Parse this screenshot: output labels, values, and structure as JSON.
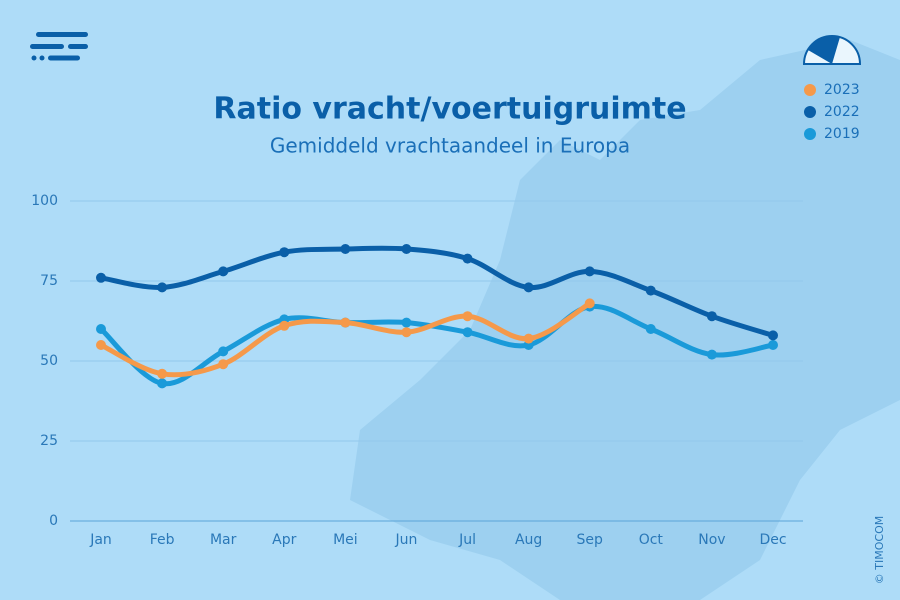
{
  "chart_data": {
    "type": "line",
    "title": "Ratio vracht/voertuigruimte",
    "subtitle": "Gemiddeld vrachtaandeel in Europa",
    "credit": "© TIMOCOM",
    "categories": [
      "Jan",
      "Feb",
      "Mar",
      "Apr",
      "Mei",
      "Jun",
      "Jul",
      "Aug",
      "Sep",
      "Oct",
      "Nov",
      "Dec"
    ],
    "series": [
      {
        "name": "2023",
        "color": "#f5994a",
        "values": [
          55,
          46,
          49,
          61,
          62,
          59,
          64,
          57,
          68,
          null,
          null,
          null
        ]
      },
      {
        "name": "2022",
        "color": "#0a5fa8",
        "values": [
          76,
          73,
          78,
          84,
          85,
          85,
          82,
          73,
          78,
          72,
          64,
          58
        ]
      },
      {
        "name": "2019",
        "color": "#1a9ad9",
        "values": [
          60,
          43,
          53,
          63,
          62,
          62,
          59,
          55,
          67,
          60,
          52,
          55
        ]
      }
    ],
    "ylim": [
      0,
      100
    ],
    "yticks": [
      0,
      25,
      50,
      75,
      100
    ],
    "grid": true,
    "legend": "top-right"
  }
}
